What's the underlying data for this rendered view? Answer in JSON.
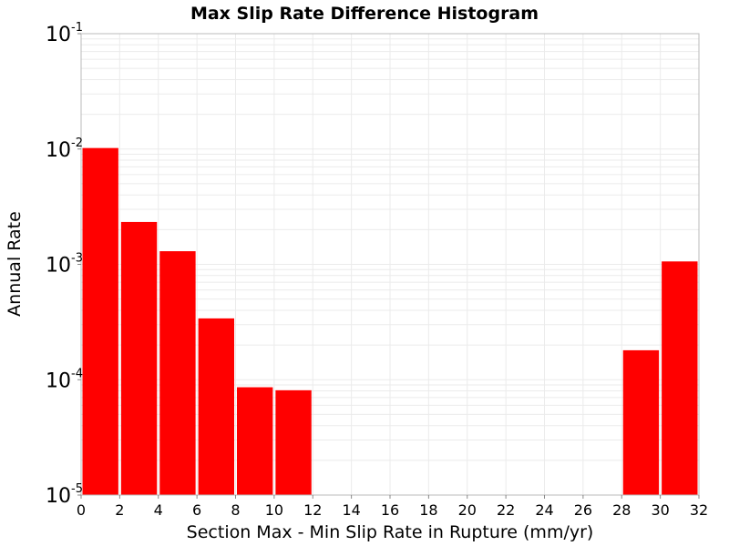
{
  "chart_data": {
    "type": "bar",
    "title": "Max Slip Rate Difference Histogram",
    "xlabel": "Section Max - Min Slip Rate in Rupture (mm/yr)",
    "ylabel": "Annual Rate",
    "xlim": [
      0,
      32
    ],
    "ylim": [
      1e-05,
      0.1
    ],
    "yscale": "log",
    "bin_width": 2,
    "grid": true,
    "x_ticks": [
      "0",
      "2",
      "4",
      "6",
      "8",
      "10",
      "12",
      "14",
      "16",
      "18",
      "20",
      "22",
      "24",
      "26",
      "28",
      "30",
      "32"
    ],
    "y_ticks": [
      {
        "base": "10",
        "exp": "-5",
        "value": 1e-05
      },
      {
        "base": "10",
        "exp": "-4",
        "value": 0.0001
      },
      {
        "base": "10",
        "exp": "-3",
        "value": 0.001
      },
      {
        "base": "10",
        "exp": "-2",
        "value": 0.01
      },
      {
        "base": "10",
        "exp": "-1",
        "value": 0.1
      }
    ],
    "bars": [
      {
        "x0": 0,
        "x1": 2,
        "value": 0.0102
      },
      {
        "x0": 2,
        "x1": 4,
        "value": 0.00233
      },
      {
        "x0": 4,
        "x1": 6,
        "value": 0.0013
      },
      {
        "x0": 6,
        "x1": 8,
        "value": 0.00034
      },
      {
        "x0": 8,
        "x1": 10,
        "value": 8.6e-05
      },
      {
        "x0": 10,
        "x1": 12,
        "value": 8.1e-05
      },
      {
        "x0": 28,
        "x1": 30,
        "value": 0.00018
      },
      {
        "x0": 30,
        "x1": 32,
        "value": 0.00106
      }
    ],
    "bar_color": "#ff0000",
    "grid_color": "#ebebeb"
  }
}
